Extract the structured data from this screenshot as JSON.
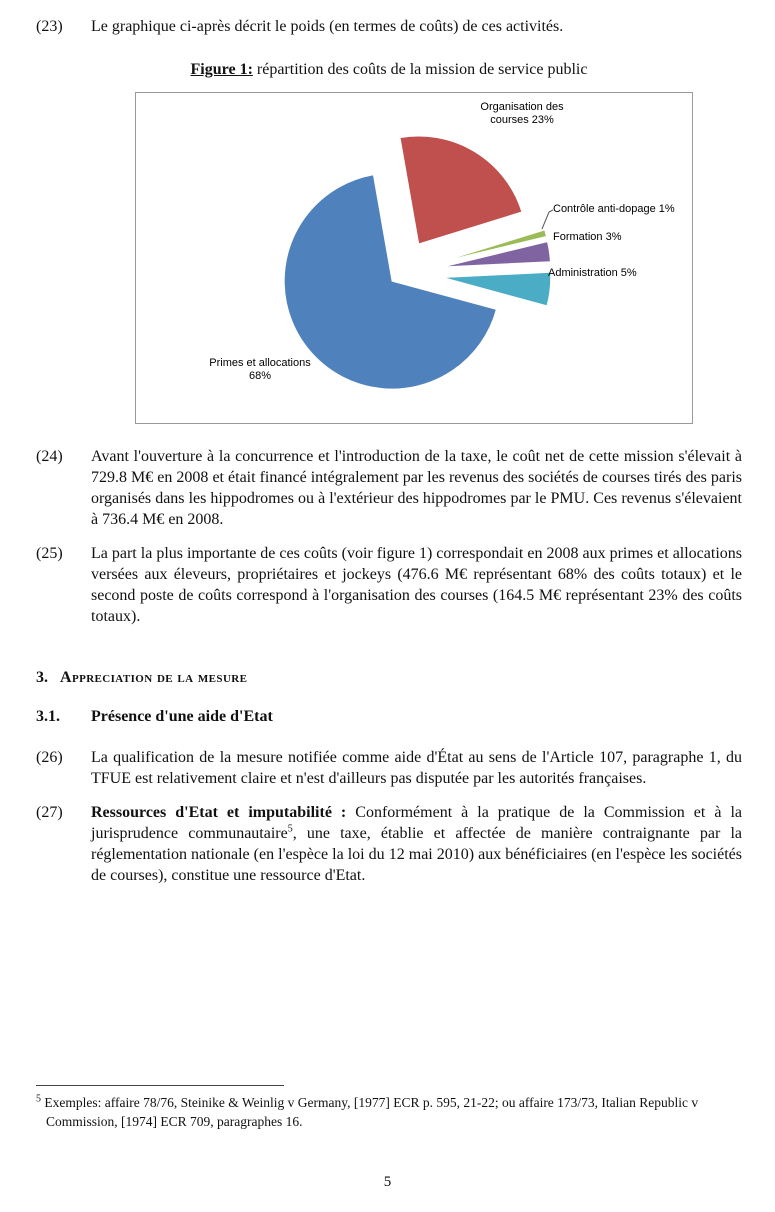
{
  "page": {
    "number": "5"
  },
  "paragraphs": {
    "p23": {
      "num": "(23)",
      "text": "Le graphique ci-après décrit le poids (en termes de coûts) de ces activités."
    },
    "p24": {
      "num": "(24)",
      "text": "Avant l'ouverture à la concurrence et l'introduction de la taxe, le coût net de cette mission s'élevait à 729.8 M€ en 2008 et était financé intégralement par les revenus des sociétés de courses tirés des paris organisés dans les hippodromes ou à l'extérieur des hippodromes par le PMU. Ces revenus s'élevaient à 736.4 M€ en 2008."
    },
    "p25": {
      "num": "(25)",
      "text": "La part la plus importante de ces coûts (voir figure 1) correspondait en 2008 aux primes et allocations versées aux éleveurs, propriétaires et jockeys (476.6 M€ représentant 68% des coûts totaux) et le second poste de coûts correspond à l'organisation des courses (164.5 M€ représentant 23% des coûts totaux)."
    },
    "p26": {
      "num": "(26)",
      "text": "La qualification de la mesure notifiée comme aide d'État au sens de l'Article 107, paragraphe 1, du TFUE est relativement claire et n'est d'ailleurs pas disputée par les autorités françaises."
    },
    "p27": {
      "num": "(27)",
      "lead": "Ressources d'Etat et imputabilité :",
      "text1": " Conformément à la pratique de la Commission et à la jurisprudence communautaire",
      "footnote_ref": "5",
      "text2": ", une taxe, établie et affectée de manière contraignante par la réglementation nationale (en l'espèce la loi du 12 mai 2010) aux bénéficiaires (en l'espèce les sociétés de courses), constitue une ressource d'Etat."
    }
  },
  "figure": {
    "caption_label": "Figure 1:",
    "caption_text": " répartition des coûts de la mission de service public"
  },
  "headings": {
    "h3": {
      "num": "3.",
      "text": "Appreciation de la mesure"
    },
    "h31": {
      "num": "3.1.",
      "text": "Présence d'une aide d'Etat"
    }
  },
  "footnote": {
    "ref": "5",
    "text": " Exemples: affaire 78/76, Steinike & Weinlig v Germany, [1977] ECR p. 595,  21-22; ou affaire 173/73, Italian Republic v Commission, [1974] ECR 709, paragraphes 16."
  },
  "chart_data": {
    "type": "pie",
    "title": "Figure 1: répartition des coûts de la mission de service public",
    "exploded": true,
    "direction": "clockwise",
    "start_angle_deg": -10,
    "legend": "none",
    "labels_position": "outside",
    "slices": [
      {
        "label": "Organisation des courses",
        "value": 23,
        "display": "Organisation des courses  23%",
        "color": "#c0504d"
      },
      {
        "label": "Contrôle anti-dopage",
        "value": 1,
        "display": "Contrôle anti-dopage 1%",
        "color": "#9bbb59"
      },
      {
        "label": "Formation",
        "value": 3,
        "display": "Formation 3%",
        "color": "#8064a2"
      },
      {
        "label": "Administration",
        "value": 5,
        "display": "Administration 5%",
        "color": "#4bacc6"
      },
      {
        "label": "Primes et allocations",
        "value": 68,
        "display": "Primes et allocations 68%",
        "color": "#4f81bd"
      }
    ]
  }
}
